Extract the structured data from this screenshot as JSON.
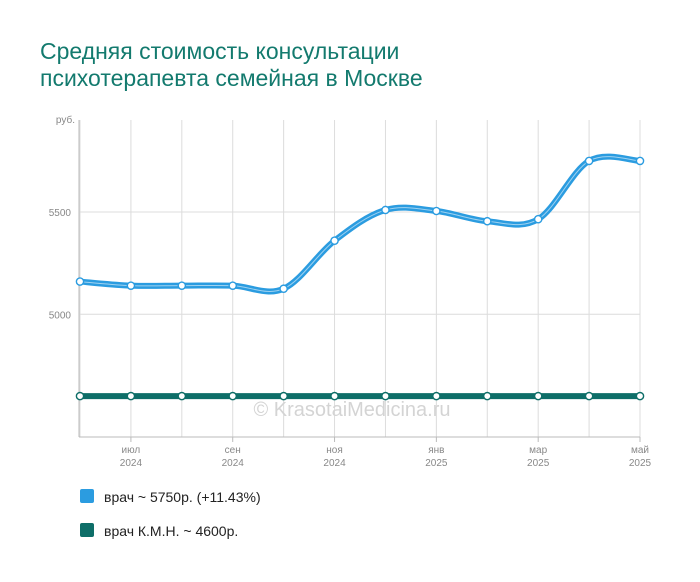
{
  "title_lines": [
    "Средняя стоимость консультации",
    "психотерапевта семейная в Москве"
  ],
  "watermark": "© KrasotaiMedicina.ru",
  "chart_data": {
    "type": "line",
    "y_unit": "руб.",
    "y_ticks": [
      5000,
      5500
    ],
    "ylim": [
      4400,
      5950
    ],
    "grid": true,
    "legend_position": "bottom-left",
    "x": [
      "2024-06",
      "2024-07",
      "2024-08",
      "2024-09",
      "2024-10",
      "2024-11",
      "2024-12",
      "2025-01",
      "2025-02",
      "2025-03",
      "2025-04",
      "2025-05"
    ],
    "x_tick_labels": [
      {
        "x": "2024-07",
        "month": "июл",
        "year": "2024"
      },
      {
        "x": "2024-09",
        "month": "сен",
        "year": "2024"
      },
      {
        "x": "2024-11",
        "month": "ноя",
        "year": "2024"
      },
      {
        "x": "2025-01",
        "month": "янв",
        "year": "2025"
      },
      {
        "x": "2025-03",
        "month": "мар",
        "year": "2025"
      },
      {
        "x": "2025-05",
        "month": "май",
        "year": "2025"
      }
    ],
    "series": [
      {
        "name": "врач",
        "color": "#2b9ce0",
        "values": [
          5160,
          5140,
          5140,
          5140,
          5125,
          5360,
          5510,
          5505,
          5455,
          5465,
          5750,
          5750
        ]
      },
      {
        "name": "врач К.М.Н.",
        "color": "#0e6e68",
        "values": [
          4600,
          4600,
          4600,
          4600,
          4600,
          4600,
          4600,
          4600,
          4600,
          4600,
          4600,
          4600
        ]
      }
    ]
  },
  "legend": [
    {
      "color": "#2b9ce0",
      "label": "врач ~ 5750р. (+11.43%)"
    },
    {
      "color": "#0e6e68",
      "label": "врач К.М.Н. ~ 4600р."
    }
  ]
}
